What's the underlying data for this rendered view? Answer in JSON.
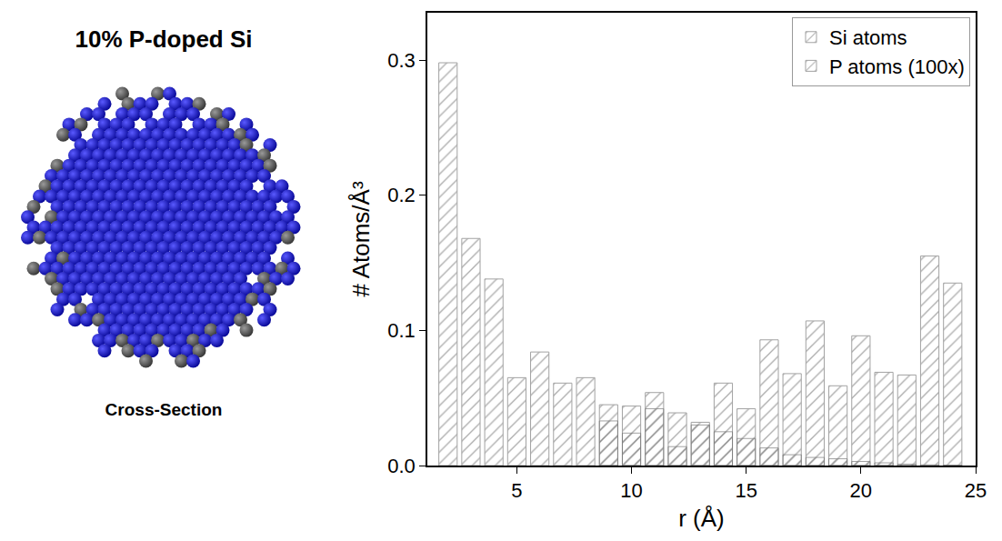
{
  "panel": {
    "title": "10% P-doped Si",
    "caption": "Cross-Section"
  },
  "chart_data": {
    "type": "bar",
    "x": [
      2,
      3,
      4,
      5,
      6,
      7,
      8,
      9,
      10,
      11,
      12,
      13,
      14,
      15,
      16,
      17,
      18,
      19,
      20,
      21,
      22,
      23,
      24
    ],
    "series": [
      {
        "name": "Si atoms",
        "color": "#f4a3a3",
        "values": [
          0.298,
          0.168,
          0.138,
          0.065,
          0.084,
          0.061,
          0.065,
          0.045,
          0.044,
          0.042,
          0.039,
          0.032,
          0.025,
          0.02,
          0.013,
          0.008,
          0.006,
          0.005,
          0.003,
          0.002,
          0.001,
          0.0005,
          0.0003
        ]
      },
      {
        "name": "P atoms (100x)",
        "color": "#a3a3f0",
        "values": [
          null,
          null,
          null,
          null,
          null,
          null,
          null,
          0.033,
          0.024,
          0.054,
          0.014,
          0.03,
          0.061,
          0.042,
          0.093,
          0.068,
          0.107,
          0.059,
          0.096,
          0.069,
          0.067,
          0.155,
          0.135
        ]
      }
    ],
    "x_label": "r (Å)",
    "y_label": "# Atoms/Å³",
    "xlim": [
      1.1,
      25
    ],
    "xticks": [
      5,
      10,
      15,
      20,
      25
    ],
    "ylim": [
      0,
      0.335
    ],
    "yticks": [
      {
        "value": 0,
        "label": "0.0"
      },
      0.1,
      0.2,
      0.3
    ],
    "grid": false,
    "legend": "top right"
  }
}
